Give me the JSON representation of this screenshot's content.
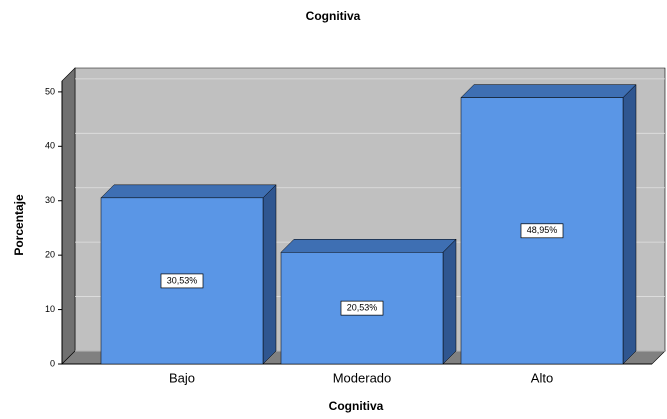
{
  "chart_data": {
    "type": "bar3d",
    "title": "Cognitiva",
    "x_label": "Cognitiva",
    "y_label": "Porcentaje",
    "categories": [
      "Bajo",
      "Moderado",
      "Alto"
    ],
    "values": [
      30.53,
      20.53,
      48.95
    ],
    "value_labels": [
      "30,53%",
      "20,53%",
      "48,95%"
    ],
    "color": "#5a96e6",
    "ylim": [
      0,
      52
    ],
    "yticks": [
      0,
      10,
      20,
      30,
      40,
      50
    ],
    "grid": true
  }
}
